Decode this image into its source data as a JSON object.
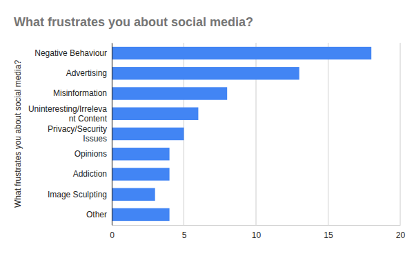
{
  "chart_data": {
    "type": "bar",
    "orientation": "horizontal",
    "title": "What frustrates you about social media?",
    "ylabel": "What frustrates you about social media?",
    "categories": [
      "Negative Behaviour",
      "Advertising",
      "Misinformation",
      "Uninteresting/Irrelevant Content",
      "Privacy/Security Issues",
      "Opinions",
      "Addiction",
      "Image Sculpting",
      "Other"
    ],
    "values": [
      18,
      13,
      8,
      6,
      5,
      4,
      4,
      3,
      4
    ],
    "color": "#4285f4",
    "xlim": [
      0,
      20
    ],
    "xticks": [
      0,
      5,
      10,
      15,
      20
    ],
    "grid": true
  }
}
